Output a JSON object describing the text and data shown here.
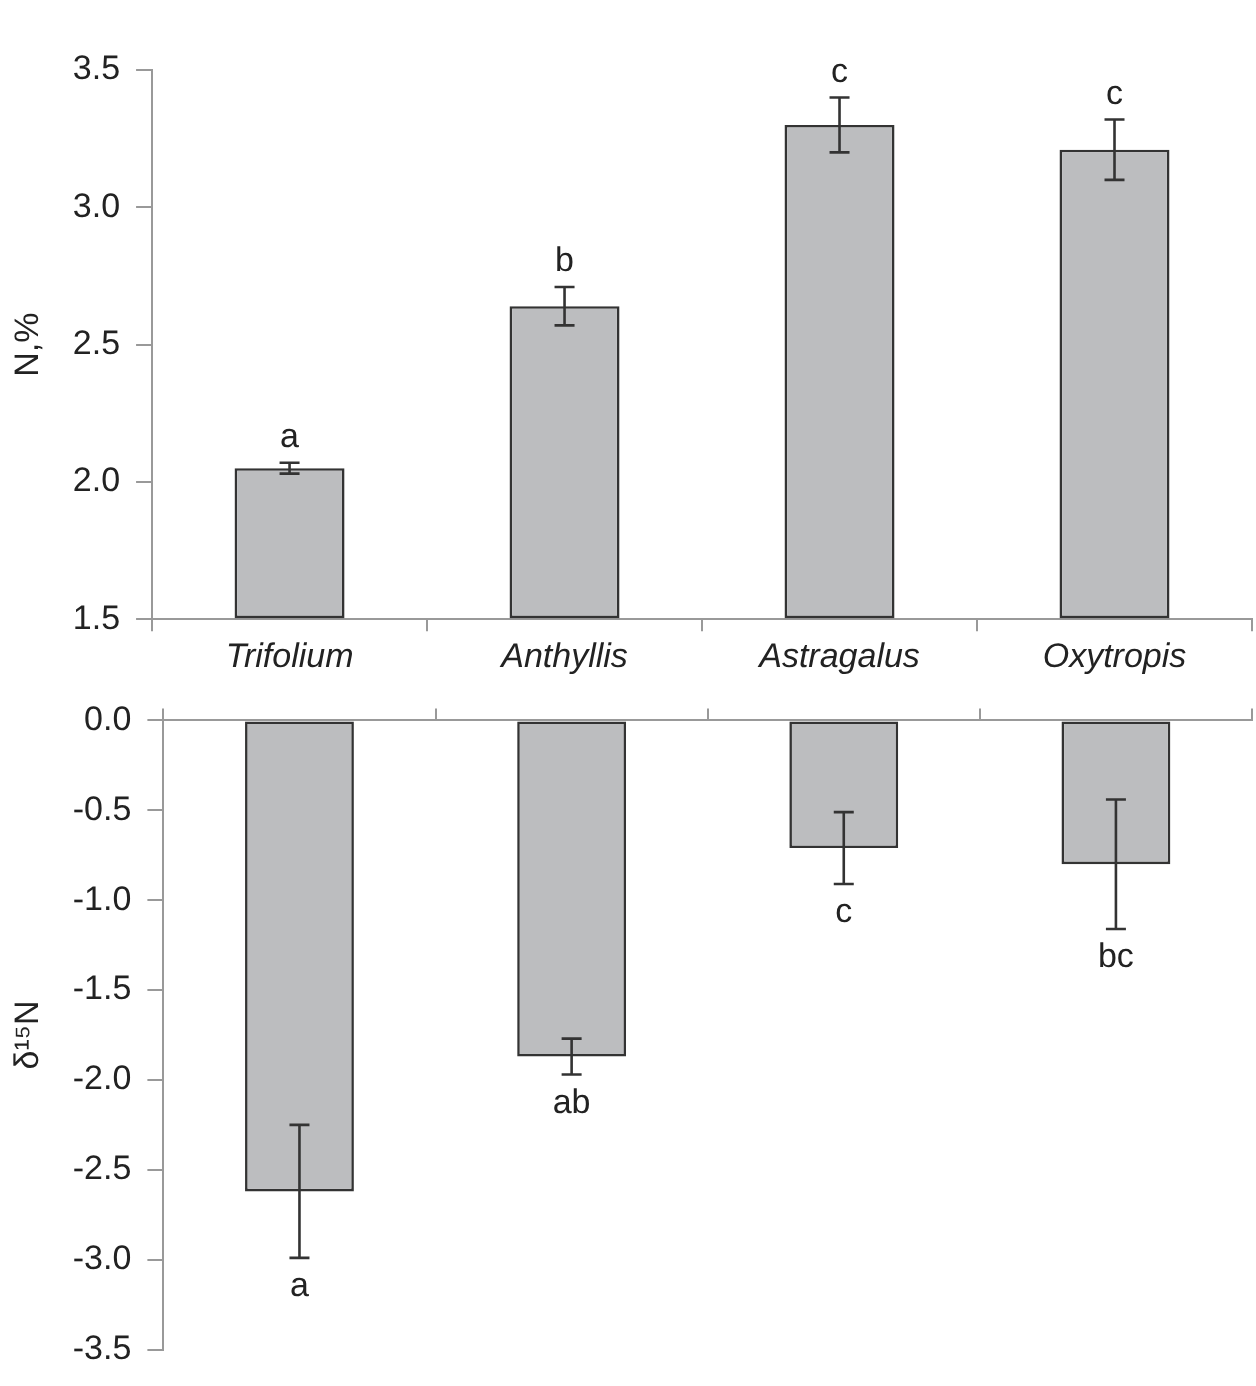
{
  "chart_data": [
    {
      "type": "bar",
      "ylabel": "N,%",
      "categories": [
        "Trifolium",
        "Anthyllis",
        "Astragalus",
        "Oxytropis"
      ],
      "values": [
        2.05,
        2.64,
        3.3,
        3.21
      ],
      "errors": [
        0.02,
        0.07,
        0.1,
        0.11
      ],
      "color": "#bcbdbf",
      "ylim": [
        1.5,
        3.5
      ],
      "yticks": [
        {
          "value": 1.5,
          "label": "1.5"
        },
        {
          "value": 2.0,
          "label": "2.0"
        },
        {
          "value": 2.5,
          "label": "2.5"
        },
        {
          "value": 3.0,
          "label": "3.0"
        },
        {
          "value": 3.5,
          "label": "3.5"
        }
      ],
      "grid": false,
      "legend": false,
      "annotations": [
        {
          "text": "a",
          "x": "Trifolium",
          "y": 2.07
        },
        {
          "text": "b",
          "x": "Anthyllis",
          "y": 2.71
        },
        {
          "text": "c",
          "x": "Astragalus",
          "y": 3.4
        },
        {
          "text": "c",
          "x": "Oxytropis",
          "y": 3.32
        }
      ]
    },
    {
      "type": "bar",
      "ylabel": "δ¹⁵N",
      "categories": [
        "Trifolium",
        "Anthyllis",
        "Astragalus",
        "Oxytropis"
      ],
      "values": [
        -2.62,
        -1.87,
        -0.71,
        -0.8
      ],
      "errors": [
        0.37,
        0.1,
        0.2,
        0.36
      ],
      "color": "#bcbdbf",
      "ylim": [
        -3.5,
        0
      ],
      "yticks": [
        {
          "value": -3.5,
          "label": "-3.5"
        },
        {
          "value": -3.0,
          "label": "-3.0"
        },
        {
          "value": -2.5,
          "label": "-2.5"
        },
        {
          "value": -2.0,
          "label": "-2.0"
        },
        {
          "value": -1.5,
          "label": "-1.5"
        },
        {
          "value": -1.0,
          "label": "-1.0"
        },
        {
          "value": -0.5,
          "label": "-0.5"
        },
        {
          "value": 0,
          "label": "0.0"
        }
      ],
      "grid": false,
      "legend": false,
      "tick_labels": "y",
      "annotations": [
        {
          "text": "a",
          "x": "Trifolium",
          "y": -2.99
        },
        {
          "text": "ab",
          "x": "Anthyllis",
          "y": -1.97
        },
        {
          "text": "c",
          "x": "Astragalus",
          "y": -0.91
        },
        {
          "text": "bc",
          "x": "Oxytropis",
          "y": -1.16
        }
      ]
    }
  ]
}
